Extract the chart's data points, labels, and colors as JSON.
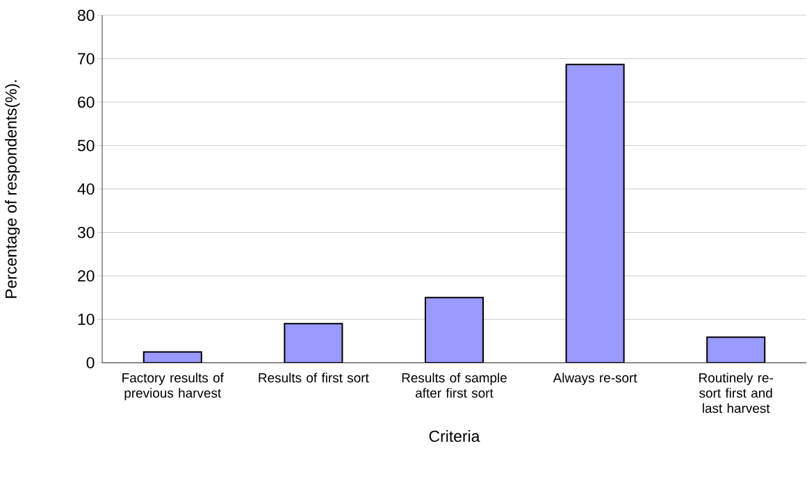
{
  "chart_data": {
    "type": "bar",
    "xlabel": "Criteria",
    "ylabel": "Percentage of respondents(%).",
    "categories": [
      "Factory results of previous harvest",
      "Results of first sort",
      "Results of sample after first sort",
      "Always re-sort",
      "Routinely re-sort first and last harvest"
    ],
    "values": [
      2.5,
      9,
      15,
      68.7,
      5.9
    ],
    "color": "#9999ff",
    "ylim": [
      0,
      80
    ],
    "yticks": [
      0,
      10,
      20,
      30,
      40,
      50,
      60,
      70,
      80
    ],
    "grid": "y"
  }
}
